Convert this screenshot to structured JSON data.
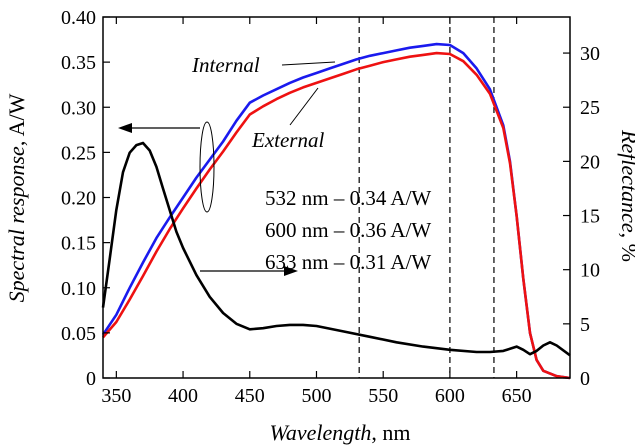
{
  "chart_data": {
    "type": "line",
    "title": "",
    "xlabel": {
      "name": "Wavelength",
      "unit": ", nm"
    },
    "ylabel_left": {
      "name": "Spectral response",
      "unit": ", A/W"
    },
    "ylabel_right": {
      "name": "Reflectance",
      "unit": ", %"
    },
    "xlim": [
      340,
      690
    ],
    "ylim_left": [
      0,
      0.4
    ],
    "ylim_right": [
      0,
      33.33
    ],
    "x_ticks": [
      350,
      400,
      450,
      500,
      550,
      600,
      650
    ],
    "x_tick_labels": [
      "350",
      "400",
      "450",
      "500",
      "550",
      "600",
      "650"
    ],
    "y_left_ticks": [
      0,
      0.05,
      0.1,
      0.15,
      0.2,
      0.25,
      0.3,
      0.35,
      0.4
    ],
    "y_left_tick_labels": [
      "0",
      "0.05",
      "0.10",
      "0.15",
      "0.20",
      "0.25",
      "0.30",
      "0.35",
      "0.40"
    ],
    "y_right_ticks": [
      0,
      5,
      10,
      15,
      20,
      25,
      30
    ],
    "y_right_tick_labels": [
      "0",
      "5",
      "10",
      "15",
      "20",
      "25",
      "30"
    ],
    "grid": false,
    "legend": "none",
    "series": [
      {
        "name": "Internal",
        "axis": "left",
        "color": "#1a1aee",
        "x": [
          340,
          350,
          360,
          370,
          380,
          390,
          400,
          410,
          420,
          430,
          440,
          450,
          460,
          470,
          480,
          490,
          500,
          510,
          520,
          530,
          540,
          550,
          560,
          570,
          580,
          590,
          600,
          610,
          620,
          630,
          640,
          645,
          650,
          655,
          660,
          665,
          670,
          680,
          690
        ],
        "y": [
          0.048,
          0.07,
          0.1,
          0.128,
          0.155,
          0.178,
          0.2,
          0.222,
          0.242,
          0.262,
          0.285,
          0.305,
          0.313,
          0.32,
          0.327,
          0.333,
          0.338,
          0.343,
          0.348,
          0.353,
          0.357,
          0.36,
          0.363,
          0.366,
          0.368,
          0.37,
          0.369,
          0.36,
          0.343,
          0.32,
          0.28,
          0.24,
          0.18,
          0.11,
          0.05,
          0.02,
          0.008,
          0.002,
          0.0
        ]
      },
      {
        "name": "External",
        "axis": "left",
        "color": "#ee1111",
        "x": [
          340,
          350,
          360,
          370,
          380,
          390,
          400,
          410,
          420,
          430,
          440,
          450,
          460,
          470,
          480,
          490,
          500,
          510,
          520,
          530,
          540,
          550,
          560,
          570,
          580,
          590,
          600,
          610,
          620,
          630,
          640,
          645,
          650,
          655,
          660,
          665,
          670,
          680,
          690
        ],
        "y": [
          0.045,
          0.062,
          0.087,
          0.113,
          0.14,
          0.165,
          0.188,
          0.21,
          0.231,
          0.251,
          0.272,
          0.292,
          0.301,
          0.309,
          0.316,
          0.322,
          0.327,
          0.332,
          0.337,
          0.342,
          0.346,
          0.35,
          0.353,
          0.356,
          0.358,
          0.36,
          0.359,
          0.351,
          0.336,
          0.315,
          0.277,
          0.238,
          0.18,
          0.11,
          0.05,
          0.02,
          0.008,
          0.002,
          0.0
        ]
      },
      {
        "name": "Reflectance",
        "axis": "right",
        "color": "#000000",
        "x": [
          340,
          345,
          350,
          355,
          360,
          365,
          370,
          375,
          380,
          385,
          390,
          395,
          400,
          410,
          420,
          430,
          440,
          450,
          460,
          470,
          480,
          490,
          500,
          520,
          540,
          560,
          580,
          600,
          620,
          630,
          640,
          645,
          650,
          655,
          660,
          665,
          670,
          675,
          680,
          690
        ],
        "y": [
          6.5,
          11,
          15.5,
          19,
          20.8,
          21.5,
          21.7,
          21,
          19.5,
          17.5,
          15.5,
          13.5,
          12,
          9.5,
          7.5,
          6,
          5,
          4.5,
          4.6,
          4.8,
          4.9,
          4.9,
          4.8,
          4.3,
          3.8,
          3.3,
          2.9,
          2.6,
          2.4,
          2.4,
          2.5,
          2.7,
          2.9,
          2.6,
          2.2,
          2.5,
          3.0,
          3.3,
          3.0,
          2.1
        ]
      }
    ],
    "vertical_lines": [
      {
        "x": 532,
        "style": "dashed"
      },
      {
        "x": 600,
        "style": "dashed"
      },
      {
        "x": 633,
        "style": "dashed"
      }
    ],
    "annotations": {
      "internal_label": "Internal",
      "external_label": "External",
      "values": [
        "532 nm – 0.34 A/W",
        "600 nm – 0.36 A/W",
        "633 nm – 0.31 A/W"
      ]
    }
  }
}
